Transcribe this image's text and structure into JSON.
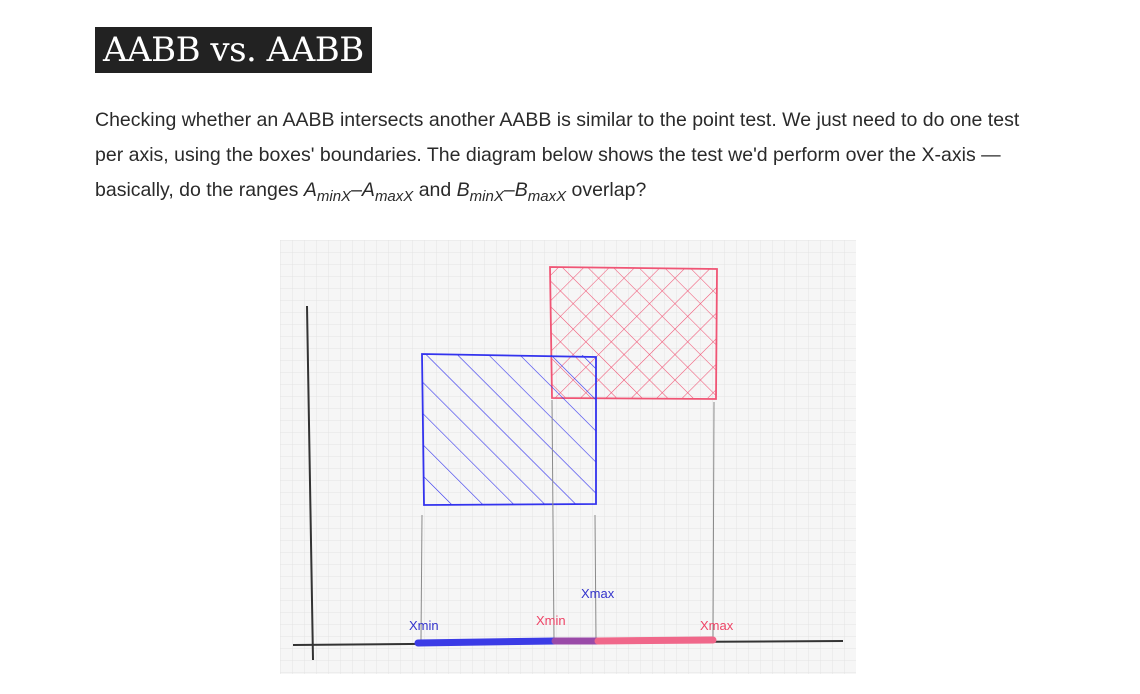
{
  "heading": "AABB vs. AABB",
  "paragraph": {
    "line1": "Checking whether an AABB intersects another AABB is similar to the point test. We just need to do one test",
    "line2": "per axis, using the boxes' boundaries. The diagram below shows the test we'd perform over the X-axis —",
    "line3_prefix": "basically, do the ranges ",
    "a": "A",
    "a_min_sub": "minX",
    "dash1": "–",
    "a2": "A",
    "a_max_sub": "maxX",
    "and": " and ",
    "b": "B",
    "b_min_sub": "minX",
    "dash2": "–",
    "b2": "B",
    "b_max_sub": "maxX",
    "suffix": " overlap?"
  },
  "diagram": {
    "labels": {
      "a_xmin": "Xmin",
      "a_xmax": "Xmax",
      "b_xmin": "Xmin",
      "b_xmax": "Xmax"
    },
    "colors": {
      "box_a": "#3333ee",
      "box_b": "#f05575",
      "overlap": "#9a4aa8",
      "axis": "#333333",
      "grid": "#e6e6e6",
      "background": "#f4f4f4"
    }
  }
}
